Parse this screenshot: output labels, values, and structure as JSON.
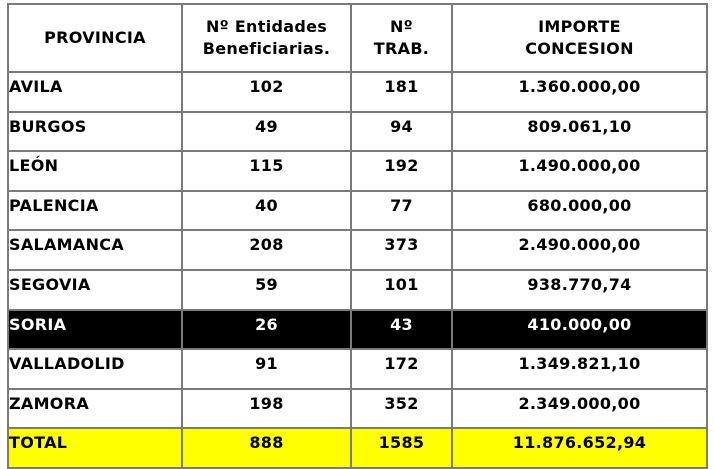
{
  "table": {
    "headers": {
      "provincia": [
        "PROVINCIA"
      ],
      "entidades": [
        "Nº Entidades",
        "Beneficiarias."
      ],
      "trab": [
        "Nº",
        "TRAB."
      ],
      "importe": [
        "IMPORTE",
        "CONCESION"
      ]
    },
    "rows": [
      {
        "provincia": "AVILA",
        "entidades": "102",
        "trab": "181",
        "importe": "1.360.000,00"
      },
      {
        "provincia": "BURGOS",
        "entidades": "49",
        "trab": "94",
        "importe": "809.061,10"
      },
      {
        "provincia": "LEÓN",
        "entidades": "115",
        "trab": "192",
        "importe": "1.490.000,00"
      },
      {
        "provincia": "PALENCIA",
        "entidades": "40",
        "trab": "77",
        "importe": "680.000,00"
      },
      {
        "provincia": "SALAMANCA",
        "entidades": "208",
        "trab": "373",
        "importe": "2.490.000,00"
      },
      {
        "provincia": "SEGOVIA",
        "entidades": "59",
        "trab": "101",
        "importe": "938.770,74"
      },
      {
        "provincia": "SORIA",
        "entidades": "26",
        "trab": "43",
        "importe": "410.000,00"
      },
      {
        "provincia": "VALLADOLID",
        "entidades": "91",
        "trab": "172",
        "importe": "1.349.821,10"
      },
      {
        "provincia": "ZAMORA",
        "entidades": "198",
        "trab": "352",
        "importe": "2.349.000,00"
      }
    ],
    "total": {
      "provincia": "TOTAL",
      "entidades": "888",
      "trab": "1585",
      "importe": "11.876.652,94"
    }
  },
  "colors": {
    "highlight_row_bg": "#000000",
    "highlight_row_text": "#ffffff",
    "total_row_bg": "#ffff00",
    "border": "#7a7a7a"
  }
}
